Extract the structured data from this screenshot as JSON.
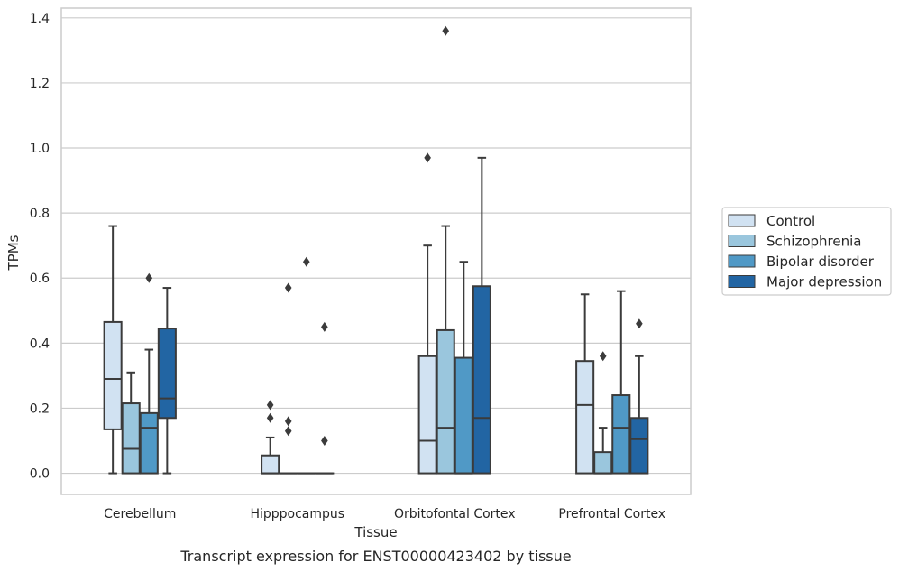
{
  "chart_data": {
    "type": "boxplot",
    "caption": "Transcript expression for ENST00000423402 by tissue",
    "xlabel": "Tissue",
    "ylabel": "TPMs",
    "ylim": [
      -0.065,
      1.43
    ],
    "yticks": [
      0.0,
      0.2,
      0.4,
      0.6,
      0.8,
      1.0,
      1.2,
      1.4
    ],
    "ytick_labels": [
      "0.0",
      "0.2",
      "0.4",
      "0.6",
      "0.8",
      "1.0",
      "1.2",
      "1.4"
    ],
    "grid": "horizontal",
    "legend_position": "right",
    "categories": [
      "Cerebellum",
      "Hipppocampus",
      "Orbitofontal Cortex",
      "Prefrontal Cortex"
    ],
    "series": [
      {
        "name": "Control",
        "color": "#d1e2f2",
        "boxes": [
          {
            "whislo": 0.0,
            "q1": 0.135,
            "med": 0.29,
            "q3": 0.465,
            "whishi": 0.76,
            "fliers": []
          },
          {
            "whislo": 0.0,
            "q1": 0.0,
            "med": 0.0,
            "q3": 0.055,
            "whishi": 0.11,
            "fliers": [
              0.17,
              0.21
            ]
          },
          {
            "whislo": 0.0,
            "q1": 0.0,
            "med": 0.1,
            "q3": 0.36,
            "whishi": 0.7,
            "fliers": [
              0.97
            ]
          },
          {
            "whislo": 0.0,
            "q1": 0.0,
            "med": 0.21,
            "q3": 0.345,
            "whishi": 0.55,
            "fliers": []
          }
        ]
      },
      {
        "name": "Schizophrenia",
        "color": "#9ac6dd",
        "boxes": [
          {
            "whislo": 0.0,
            "q1": 0.0,
            "med": 0.075,
            "q3": 0.215,
            "whishi": 0.31,
            "fliers": []
          },
          {
            "whislo": 0.0,
            "q1": 0.0,
            "med": 0.0,
            "q3": 0.0,
            "whishi": 0.0,
            "fliers": [
              0.13,
              0.16,
              0.57
            ]
          },
          {
            "whislo": 0.0,
            "q1": 0.0,
            "med": 0.14,
            "q3": 0.44,
            "whishi": 0.76,
            "fliers": [
              1.36
            ]
          },
          {
            "whislo": 0.0,
            "q1": 0.0,
            "med": 0.0,
            "q3": 0.065,
            "whishi": 0.14,
            "fliers": [
              0.36
            ]
          }
        ]
      },
      {
        "name": "Bipolar disorder",
        "color": "#5099c6",
        "boxes": [
          {
            "whislo": 0.0,
            "q1": 0.0,
            "med": 0.14,
            "q3": 0.185,
            "whishi": 0.38,
            "fliers": [
              0.6
            ]
          },
          {
            "whislo": 0.0,
            "q1": 0.0,
            "med": 0.0,
            "q3": 0.0,
            "whishi": 0.0,
            "fliers": [
              0.65
            ]
          },
          {
            "whislo": 0.0,
            "q1": 0.0,
            "med": 0.0,
            "q3": 0.355,
            "whishi": 0.65,
            "fliers": []
          },
          {
            "whislo": 0.0,
            "q1": 0.0,
            "med": 0.14,
            "q3": 0.24,
            "whishi": 0.56,
            "fliers": []
          }
        ]
      },
      {
        "name": "Major depression",
        "color": "#2265a3",
        "boxes": [
          {
            "whislo": 0.0,
            "q1": 0.17,
            "med": 0.23,
            "q3": 0.445,
            "whishi": 0.57,
            "fliers": []
          },
          {
            "whislo": 0.0,
            "q1": 0.0,
            "med": 0.0,
            "q3": 0.0,
            "whishi": 0.0,
            "fliers": [
              0.1,
              0.45
            ]
          },
          {
            "whislo": 0.0,
            "q1": 0.0,
            "med": 0.17,
            "q3": 0.575,
            "whishi": 0.97,
            "fliers": []
          },
          {
            "whislo": 0.0,
            "q1": 0.0,
            "med": 0.105,
            "q3": 0.17,
            "whishi": 0.36,
            "fliers": [
              0.46
            ]
          }
        ]
      }
    ]
  }
}
